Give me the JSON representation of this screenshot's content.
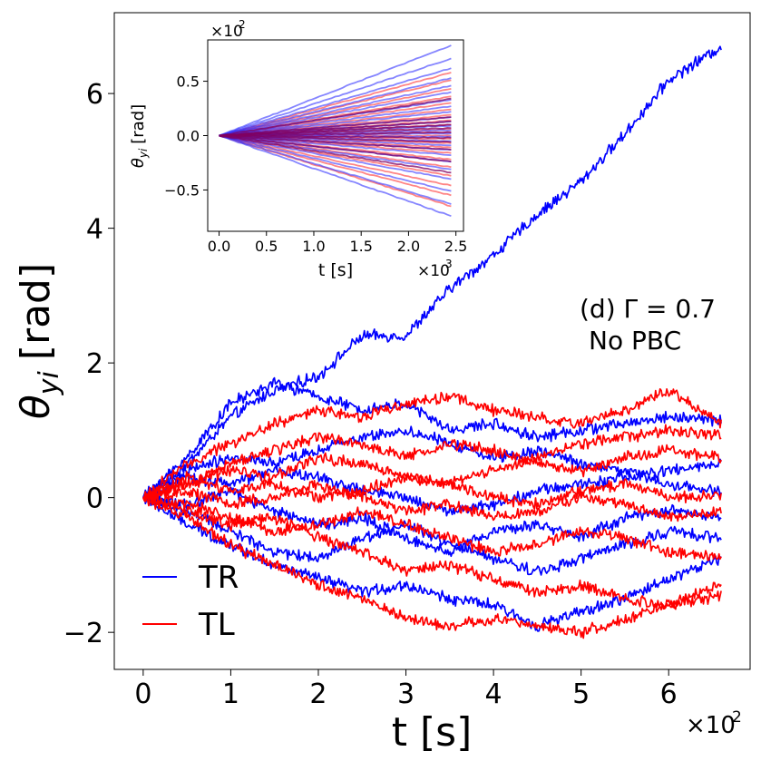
{
  "chart_data": {
    "type": "line",
    "main": {
      "title": "",
      "xlabel": "t [s]",
      "ylabel_symbol": "θ",
      "ylabel_sub": "yi",
      "ylabel_unit": "[rad]",
      "x_scale_label": "×10",
      "x_scale_exp": "2",
      "x_ticks": [
        0,
        1,
        2,
        3,
        4,
        5,
        6
      ],
      "x_tick_labels": [
        "0",
        "1",
        "2",
        "3",
        "4",
        "5",
        "6"
      ],
      "y_ticks": [
        -2,
        0,
        2,
        4,
        6
      ],
      "y_tick_labels": [
        "−2",
        "0",
        "2",
        "4",
        "6"
      ],
      "xlim": [
        -0.33,
        6.93
      ],
      "ylim": [
        -2.55,
        7.2
      ],
      "annotation_line1": "(d) Γ = 0.7",
      "annotation_line2": "No PBC",
      "legend": [
        {
          "label": "TR",
          "color": "#0000ff"
        },
        {
          "label": "TL",
          "color": "#ff0000"
        }
      ],
      "series": [
        {
          "name": "TR",
          "color": "#0000ff",
          "x": [
            0,
            0.5,
            1.0,
            1.5,
            2.0,
            2.5,
            3.0,
            3.5,
            4.0,
            4.5,
            5.0,
            5.5,
            6.0,
            6.6
          ],
          "y": [
            0,
            0.5,
            1.2,
            1.6,
            1.8,
            2.4,
            2.4,
            3.1,
            3.6,
            4.2,
            4.7,
            5.4,
            6.2,
            6.7
          ]
        },
        {
          "name": "TR",
          "color": "#0000ff",
          "x": [
            0,
            0.5,
            1.0,
            1.5,
            2.0,
            2.5,
            3.0,
            3.5,
            4.0,
            4.5,
            5.0,
            5.5,
            6.0,
            6.6
          ],
          "y": [
            0,
            0.6,
            1.4,
            1.7,
            1.5,
            1.3,
            1.4,
            1.0,
            1.1,
            0.9,
            1.0,
            1.1,
            1.2,
            1.15
          ]
        },
        {
          "name": "TR",
          "color": "#0000ff",
          "x": [
            0,
            0.5,
            1.0,
            1.5,
            2.0,
            2.5,
            3.0,
            3.5,
            4.0,
            4.5,
            5.0,
            5.5,
            6.0,
            6.6
          ],
          "y": [
            0,
            -0.4,
            -0.7,
            -1.0,
            -1.2,
            -1.4,
            -1.3,
            -1.5,
            -1.6,
            -1.9,
            -1.7,
            -1.5,
            -1.2,
            -0.9
          ]
        },
        {
          "name": "TR",
          "color": "#0000ff",
          "x": [
            0,
            0.5,
            1.0,
            1.5,
            2.0,
            2.5,
            3.0,
            3.5,
            4.0,
            4.5,
            5.0,
            5.5,
            6.0,
            6.6
          ],
          "y": [
            0,
            0.3,
            0.2,
            0.4,
            0.3,
            0.1,
            0.0,
            -0.2,
            -0.1,
            0.1,
            0.2,
            0.3,
            0.4,
            0.5
          ]
        },
        {
          "name": "TR",
          "color": "#0000ff",
          "x": [
            0,
            0.5,
            1.0,
            1.5,
            2.0,
            2.5,
            3.0,
            3.5,
            4.0,
            4.5,
            5.0,
            5.5,
            6.0,
            6.6
          ],
          "y": [
            0,
            -0.2,
            -0.5,
            -0.8,
            -0.9,
            -0.6,
            -0.4,
            -0.7,
            -0.9,
            -1.1,
            -0.9,
            -0.7,
            -0.5,
            -0.6
          ]
        },
        {
          "name": "TR",
          "color": "#0000ff",
          "x": [
            0,
            0.5,
            1.0,
            1.5,
            2.0,
            2.5,
            3.0,
            3.5,
            4.0,
            4.5,
            5.0,
            5.5,
            6.0,
            6.6
          ],
          "y": [
            0,
            0.4,
            0.6,
            0.5,
            0.7,
            0.9,
            1.0,
            0.8,
            0.6,
            0.7,
            0.5,
            0.4,
            0.2,
            0.1
          ]
        },
        {
          "name": "TR",
          "color": "#0000ff",
          "x": [
            0,
            0.5,
            1.0,
            1.5,
            2.0,
            2.5,
            3.0,
            3.5,
            4.0,
            4.5,
            5.0,
            5.5,
            6.0,
            6.6
          ],
          "y": [
            0,
            -0.1,
            0.1,
            -0.2,
            -0.4,
            -0.3,
            -0.6,
            -0.8,
            -0.5,
            -0.4,
            -0.6,
            -0.3,
            -0.2,
            -0.3
          ]
        },
        {
          "name": "TL",
          "color": "#ff0000",
          "x": [
            0,
            0.5,
            1.0,
            1.5,
            2.0,
            2.5,
            3.0,
            3.5,
            4.0,
            4.5,
            5.0,
            5.5,
            6.0,
            6.6
          ],
          "y": [
            0,
            0.5,
            0.8,
            1.1,
            1.3,
            1.2,
            1.4,
            1.5,
            1.3,
            1.2,
            1.1,
            1.3,
            1.6,
            1.1
          ]
        },
        {
          "name": "TL",
          "color": "#ff0000",
          "x": [
            0,
            0.5,
            1.0,
            1.5,
            2.0,
            2.5,
            3.0,
            3.5,
            4.0,
            4.5,
            5.0,
            5.5,
            6.0,
            6.6
          ],
          "y": [
            0,
            -0.3,
            -0.7,
            -1.0,
            -1.3,
            -1.5,
            -1.8,
            -1.9,
            -1.8,
            -1.9,
            -2.0,
            -1.8,
            -1.6,
            -1.45
          ]
        },
        {
          "name": "TL",
          "color": "#ff0000",
          "x": [
            0,
            0.5,
            1.0,
            1.5,
            2.0,
            2.5,
            3.0,
            3.5,
            4.0,
            4.5,
            5.0,
            5.5,
            6.0,
            6.6
          ],
          "y": [
            0,
            0.2,
            0.4,
            0.3,
            0.6,
            0.5,
            0.3,
            0.2,
            0.4,
            0.6,
            0.8,
            0.9,
            1.0,
            0.95
          ]
        },
        {
          "name": "TL",
          "color": "#ff0000",
          "x": [
            0,
            0.5,
            1.0,
            1.5,
            2.0,
            2.5,
            3.0,
            3.5,
            4.0,
            4.5,
            5.0,
            5.5,
            6.0,
            6.6
          ],
          "y": [
            0,
            -0.2,
            -0.4,
            -0.3,
            -0.6,
            -0.8,
            -1.1,
            -1.0,
            -1.2,
            -1.4,
            -1.3,
            -1.5,
            -1.6,
            -1.3
          ]
        },
        {
          "name": "TL",
          "color": "#ff0000",
          "x": [
            0,
            0.5,
            1.0,
            1.5,
            2.0,
            2.5,
            3.0,
            3.5,
            4.0,
            4.5,
            5.0,
            5.5,
            6.0,
            6.6
          ],
          "y": [
            0,
            0.3,
            0.1,
            0.2,
            0.0,
            0.1,
            0.3,
            0.2,
            0.0,
            -0.1,
            0.1,
            0.2,
            0.0,
            0.05
          ]
        },
        {
          "name": "TL",
          "color": "#ff0000",
          "x": [
            0,
            0.5,
            1.0,
            1.5,
            2.0,
            2.5,
            3.0,
            3.5,
            4.0,
            4.5,
            5.0,
            5.5,
            6.0,
            6.6
          ],
          "y": [
            0,
            -0.1,
            -0.3,
            -0.5,
            -0.4,
            -0.2,
            -0.4,
            -0.6,
            -0.8,
            -0.7,
            -0.5,
            -0.6,
            -0.8,
            -0.9
          ]
        },
        {
          "name": "TL",
          "color": "#ff0000",
          "x": [
            0,
            0.5,
            1.0,
            1.5,
            2.0,
            2.5,
            3.0,
            3.5,
            4.0,
            4.5,
            5.0,
            5.5,
            6.0,
            6.6
          ],
          "y": [
            0,
            0.2,
            0.5,
            0.7,
            0.9,
            0.8,
            0.6,
            0.8,
            0.7,
            0.5,
            0.4,
            0.6,
            0.7,
            0.6
          ]
        },
        {
          "name": "TL",
          "color": "#ff0000",
          "x": [
            0,
            0.5,
            1.0,
            1.5,
            2.0,
            2.5,
            3.0,
            3.5,
            4.0,
            4.5,
            5.0,
            5.5,
            6.0,
            6.6
          ],
          "y": [
            0,
            0.1,
            -0.1,
            0.0,
            0.2,
            0.0,
            -0.2,
            -0.1,
            -0.3,
            -0.2,
            0.0,
            -0.1,
            -0.3,
            -0.2
          ]
        }
      ]
    },
    "inset": {
      "xlabel": "t [s]",
      "ylabel_symbol": "θ",
      "ylabel_sub": "yi",
      "ylabel_unit": "[rad]",
      "x_scale_label": "×10",
      "x_scale_exp": "3",
      "y_scale_label": "×10",
      "y_scale_exp": "2",
      "x_ticks": [
        0.0,
        0.5,
        1.0,
        1.5,
        2.0,
        2.5
      ],
      "x_tick_labels": [
        "0.0",
        "0.5",
        "1.0",
        "1.5",
        "2.0",
        "2.5"
      ],
      "y_ticks": [
        -0.5,
        0.0,
        0.5
      ],
      "y_tick_labels": [
        "−0.5",
        "0.0",
        "0.5"
      ],
      "xlim": [
        -0.12,
        2.58
      ],
      "ylim": [
        -0.88,
        0.88
      ],
      "t_end": 2.45,
      "red_endpoints": [
        0.58,
        0.51,
        0.43,
        0.36,
        0.3,
        0.24,
        0.19,
        0.14,
        0.1,
        0.06,
        0.03,
        0.0,
        -0.03,
        -0.07,
        -0.11,
        -0.16,
        -0.22,
        -0.29,
        -0.37,
        -0.46,
        -0.55,
        -0.65
      ],
      "blue_endpoints": [
        0.83,
        0.71,
        0.62,
        0.53,
        0.46,
        0.4,
        0.33,
        0.27,
        0.22,
        0.17,
        0.13,
        0.09,
        0.05,
        0.02,
        -0.01,
        -0.05,
        -0.09,
        -0.13,
        -0.18,
        -0.24,
        -0.31,
        -0.4,
        -0.51,
        -0.63,
        -0.74
      ],
      "purple_endpoints": [
        0.34,
        0.17,
        0.13,
        0.1,
        0.07,
        0.03,
        -0.02,
        -0.06,
        -0.13,
        -0.24,
        -0.34
      ],
      "colors": {
        "red": "#ff3333",
        "blue": "#3333ff",
        "purple": "#800060"
      }
    }
  }
}
